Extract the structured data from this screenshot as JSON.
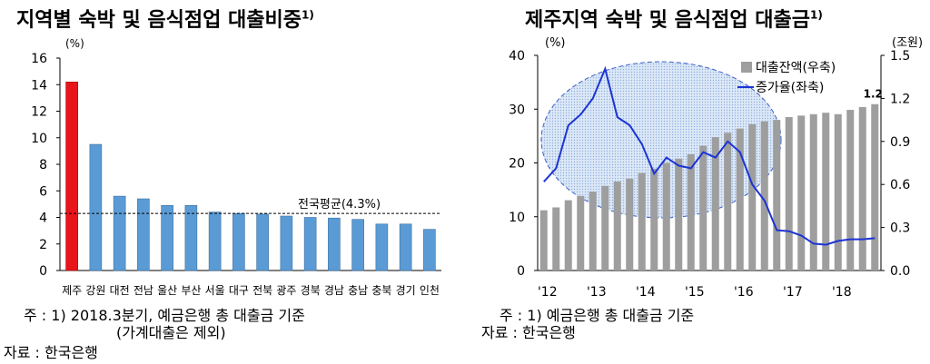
{
  "left_chart": {
    "title": "지역별 숙박 및 음식점업 대출비중",
    "title_footnote": "1)",
    "ylabel": "(%)",
    "reference_label": "전국평균(4.3%)",
    "note_lines": [
      "주 : 1) 2018.3분기, 예금은행 총 대출금 기준",
      "(가계대출은 제외)"
    ],
    "source": "자료 : 한국은행"
  },
  "right_chart": {
    "title": "제주지역 숙박 및 음식점업 대출금",
    "title_footnote": "1)",
    "ylabel_left": "(%)",
    "ylabel_right": "(조원)",
    "last_bar_label": "1.2",
    "note_lines": [
      "주 : 1) 예금은행 총 대출금 기준"
    ],
    "source": "자료 : 한국은행"
  },
  "chart_data": [
    {
      "type": "bar",
      "categories": [
        "제주",
        "강원",
        "대전",
        "전남",
        "울산",
        "부산",
        "서울",
        "대구",
        "전북",
        "광주",
        "경북",
        "경남",
        "충남",
        "충북",
        "경기",
        "인천"
      ],
      "values": [
        14.2,
        9.5,
        5.6,
        5.4,
        4.9,
        4.9,
        4.4,
        4.3,
        4.25,
        4.1,
        4.0,
        3.95,
        3.85,
        3.5,
        3.5,
        3.1
      ],
      "highlight_color": "#e8151b",
      "bar_color": "#5b9bd5",
      "reference_line": 4.3,
      "ylim": [
        0,
        16
      ],
      "yticks": [
        0,
        2,
        4,
        6,
        8,
        10,
        12,
        14,
        16
      ],
      "grid": false
    },
    {
      "type": "bar+line",
      "x_ticks": [
        "'12",
        "'13",
        "'14",
        "'15",
        "'16",
        "'17",
        "'18"
      ],
      "legend": [
        "대출잔액(우축)",
        "증가율(좌축)"
      ],
      "legend_position": "top-right",
      "bar_color": "#9e9e9e",
      "line_color": "#1c34d4",
      "highlight": "ellipse 2012–2016",
      "series": [
        {
          "name": "대출잔액(우축)",
          "axis": "right",
          "values": [
            0.42,
            0.44,
            0.49,
            0.52,
            0.55,
            0.59,
            0.62,
            0.64,
            0.68,
            0.71,
            0.75,
            0.78,
            0.81,
            0.87,
            0.93,
            0.96,
            0.99,
            1.02,
            1.04,
            1.05,
            1.07,
            1.08,
            1.09,
            1.1,
            1.09,
            1.12,
            1.14,
            1.16
          ]
        },
        {
          "name": "증가율(좌축)",
          "axis": "left",
          "values": [
            16.5,
            19.0,
            27.0,
            29.0,
            32.0,
            37.5,
            28.5,
            27.0,
            23.5,
            18.0,
            21.0,
            19.5,
            19.0,
            22.0,
            21.0,
            24.0,
            22.0,
            16.0,
            13.0,
            7.5,
            7.3,
            6.5,
            5.0,
            4.8,
            5.5,
            5.8,
            5.8,
            6.0
          ]
        }
      ],
      "ylim_left": [
        0,
        40
      ],
      "yticks_left": [
        0,
        10,
        20,
        30,
        40
      ],
      "ylim_right": [
        0.0,
        1.5
      ],
      "yticks_right": [
        "0.0",
        "0.3",
        "0.6",
        "0.9",
        "1.2",
        "1.5"
      ],
      "grid": false
    }
  ]
}
